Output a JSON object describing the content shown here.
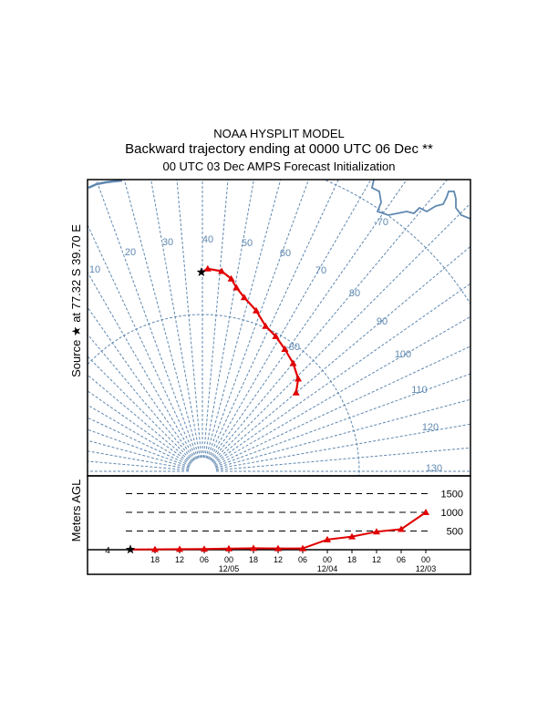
{
  "header": {
    "model": "NOAA HYSPLIT MODEL",
    "title": "Backward trajectory ending at 0000 UTC 06 Dec **",
    "subtitle": "00 UTC 03 Dec    AMPS  Forecast Initialization"
  },
  "colors": {
    "grid": "#5f88b0",
    "trajectory": "#e00000",
    "frame": "#000000"
  },
  "chart_data": [
    {
      "type": "line",
      "name": "trajectory-map",
      "projection": "polar-stereographic-south",
      "ylabel": "Source ★ at  77.32 S  39.70 E",
      "source": {
        "lat": -77.32,
        "lon": 39.7,
        "symbol": "star"
      },
      "meridian_labels": [
        "10",
        "20",
        "30",
        "40",
        "50",
        "60",
        "70",
        "80",
        "90",
        "100",
        "110",
        "120",
        "130"
      ],
      "parallel_labels": [
        "-80",
        "-70"
      ],
      "grid": true,
      "series": [
        {
          "name": "trajectory",
          "lat": [
            -77.32,
            -77.1,
            -77.2,
            -77.6,
            -78.1,
            -78.6,
            -79.2,
            -79.9,
            -80.2,
            -80.6,
            -81.0,
            -81.5,
            -82.2
          ],
          "lon": [
            39.7,
            41.5,
            45.5,
            48.5,
            50.5,
            53.5,
            58.5,
            63.5,
            68.5,
            74.0,
            80.0,
            86.0,
            90.0
          ]
        }
      ]
    },
    {
      "type": "line",
      "name": "height-profile",
      "ylabel": "Meters AGL",
      "source_height_label": "4",
      "y_ticks": [
        500,
        1000,
        1500
      ],
      "y_tick_labels": [
        "500",
        "1000",
        "1500"
      ],
      "ylim": [
        0,
        1500
      ],
      "x_tick_labels": [
        "18",
        "12",
        "06",
        "00",
        "18",
        "12",
        "06",
        "00",
        "18",
        "12",
        "06",
        "00"
      ],
      "x_date_labels": [
        "12/05",
        "12/04",
        "12/03"
      ],
      "series": [
        {
          "name": "height",
          "hours_back": [
            0,
            6,
            12,
            18,
            24,
            30,
            36,
            42,
            48,
            54,
            60,
            66,
            72
          ],
          "values": [
            4,
            10,
            15,
            20,
            30,
            40,
            35,
            35,
            270,
            350,
            480,
            550,
            1000
          ]
        }
      ]
    }
  ]
}
